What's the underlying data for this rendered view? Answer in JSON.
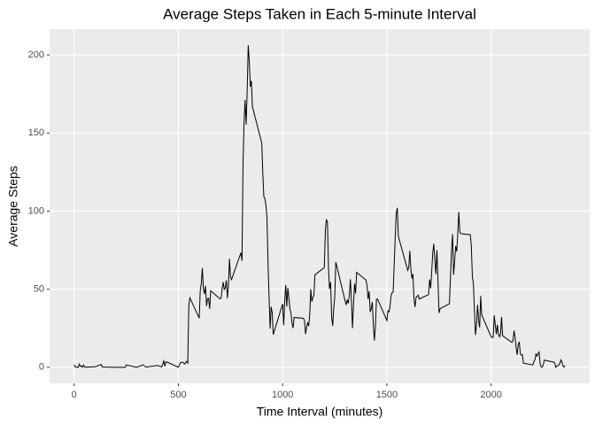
{
  "chart_data": {
    "type": "line",
    "title": "Average Steps Taken in Each 5-minute Interval",
    "x_label": "Time Interval (minutes)",
    "y_label": "Average Steps",
    "color": "#000000",
    "grid": true,
    "xlim": [
      -117.75,
      2472.75
    ],
    "ylim": [
      -10.3,
      216.5
    ],
    "xticks": [
      0,
      500,
      1000,
      1500,
      2000
    ],
    "yticks": [
      0,
      50,
      100,
      150,
      200
    ],
    "x": [
      0,
      5,
      10,
      15,
      20,
      25,
      30,
      35,
      40,
      45,
      50,
      55,
      100,
      130,
      135,
      200,
      230,
      245,
      250,
      300,
      330,
      345,
      400,
      420,
      430,
      435,
      440,
      450,
      500,
      510,
      520,
      530,
      540,
      545,
      550,
      555,
      600,
      605,
      610,
      615,
      620,
      625,
      630,
      635,
      640,
      645,
      650,
      655,
      700,
      705,
      710,
      715,
      720,
      725,
      730,
      735,
      740,
      745,
      750,
      755,
      800,
      805,
      810,
      815,
      820,
      825,
      830,
      835,
      840,
      845,
      850,
      855,
      900,
      905,
      910,
      915,
      920,
      925,
      930,
      935,
      940,
      945,
      950,
      955,
      1000,
      1005,
      1010,
      1015,
      1020,
      1025,
      1030,
      1035,
      1040,
      1045,
      1050,
      1055,
      1100,
      1105,
      1110,
      1115,
      1120,
      1125,
      1130,
      1135,
      1140,
      1145,
      1150,
      1155,
      1200,
      1205,
      1210,
      1215,
      1220,
      1225,
      1230,
      1235,
      1240,
      1245,
      1250,
      1255,
      1300,
      1305,
      1310,
      1315,
      1320,
      1325,
      1330,
      1335,
      1340,
      1345,
      1350,
      1355,
      1400,
      1405,
      1410,
      1415,
      1420,
      1425,
      1430,
      1435,
      1440,
      1445,
      1450,
      1455,
      1500,
      1505,
      1510,
      1515,
      1520,
      1525,
      1530,
      1535,
      1540,
      1545,
      1550,
      1555,
      1600,
      1605,
      1610,
      1615,
      1620,
      1625,
      1630,
      1635,
      1640,
      1645,
      1650,
      1655,
      1700,
      1705,
      1710,
      1715,
      1720,
      1725,
      1730,
      1735,
      1740,
      1745,
      1750,
      1755,
      1800,
      1805,
      1810,
      1815,
      1820,
      1825,
      1830,
      1835,
      1840,
      1845,
      1850,
      1855,
      1900,
      1905,
      1910,
      1915,
      1920,
      1925,
      1930,
      1935,
      1940,
      1945,
      1950,
      1955,
      2000,
      2005,
      2010,
      2015,
      2020,
      2025,
      2030,
      2035,
      2040,
      2045,
      2050,
      2055,
      2100,
      2105,
      2110,
      2115,
      2120,
      2125,
      2130,
      2135,
      2140,
      2145,
      2150,
      2155,
      2200,
      2205,
      2210,
      2215,
      2220,
      2225,
      2230,
      2235,
      2240,
      2245,
      2250,
      2255,
      2300,
      2305,
      2310,
      2315,
      2320,
      2325,
      2330,
      2335,
      2340,
      2345,
      2350,
      2355
    ],
    "values": [
      1.7,
      0.3,
      0.1,
      0.2,
      0.1,
      2.1,
      0.5,
      0.9,
      0,
      1.5,
      0.3,
      0.1,
      0.3,
      1.8,
      0.2,
      0,
      0,
      0,
      1.5,
      0,
      1.6,
      0.1,
      1.2,
      0.3,
      4.1,
      0.7,
      3.5,
      3.1,
      0,
      3,
      3.3,
      2.1,
      3.8,
      2.7,
      39.5,
      44.5,
      31.5,
      49.3,
      53.8,
      63.5,
      50,
      47,
      52.2,
      39.3,
      44,
      44.2,
      37.4,
      49,
      43.8,
      44.4,
      50.5,
      54.5,
      49.9,
      50.9,
      55.7,
      44.3,
      52.3,
      69.5,
      57.8,
      56.2,
      73.4,
      68.2,
      129.4,
      157.5,
      171.2,
      155.4,
      177.3,
      206.2,
      195.9,
      179.6,
      183.4,
      167,
      143.5,
      124,
      109.1,
      108.1,
      103.7,
      95.9,
      66.2,
      45.2,
      24.8,
      38.8,
      35,
      21,
      40.6,
      26.9,
      42.4,
      52.7,
      38.9,
      50.8,
      44.3,
      37.4,
      34.7,
      28.3,
      25.1,
      31.9,
      31.4,
      29.7,
      21.3,
      25.5,
      28.4,
      26.5,
      33.4,
      50,
      42,
      44.6,
      46,
      59.2,
      63.9,
      87.7,
      94.8,
      92.8,
      63.4,
      50.2,
      54.5,
      32.4,
      26.5,
      37.7,
      45.1,
      67.3,
      42.3,
      39.9,
      43.3,
      40.9,
      46.2,
      56.4,
      42.8,
      25.1,
      39.9,
      53.5,
      47.3,
      60.8,
      55.8,
      51.96,
      43.6,
      48.7,
      35.5,
      37.5,
      41.8,
      27.5,
      17.1,
      26.1,
      43.6,
      43.8,
      30,
      36.1,
      35.5,
      38.8,
      46,
      47.8,
      48.1,
      65.3,
      82.9,
      98.7,
      102.1,
      83.96,
      62.1,
      64.1,
      74.5,
      63.2,
      56.9,
      59.8,
      43.9,
      38.6,
      44.7,
      45.5,
      46.2,
      43.7,
      46.6,
      56.3,
      50.7,
      61.2,
      73.4,
      79.1,
      68.9,
      59.7,
      75.1,
      56.5,
      34.8,
      37.5,
      40.7,
      58,
      74.7,
      85.3,
      59.3,
      67.8,
      77.7,
      74.2,
      85.3,
      99.5,
      86.6,
      85.6,
      84.9,
      77.8,
      58,
      53.4,
      36.3,
      20.7,
      27.4,
      40,
      30.2,
      25.5,
      45.7,
      33.5,
      19.6,
      19,
      19.3,
      33.3,
      26.8,
      21.2,
      27.3,
      21.3,
      19.5,
      21.3,
      32.3,
      20.2,
      15.9,
      17.2,
      23.5,
      19.2,
      12.5,
      8,
      14.7,
      16.3,
      8.7,
      7.8,
      8.1,
      2.6,
      1.5,
      3.7,
      4.8,
      8.5,
      7.1,
      8.7,
      9.8,
      2.2,
      0.3,
      0.1,
      1.6,
      4.6,
      3.3,
      2.8,
      0,
      0.8,
      0.96,
      1.6,
      2.6,
      4.7,
      3.3,
      0.6,
      0.2,
      1.1
    ]
  }
}
